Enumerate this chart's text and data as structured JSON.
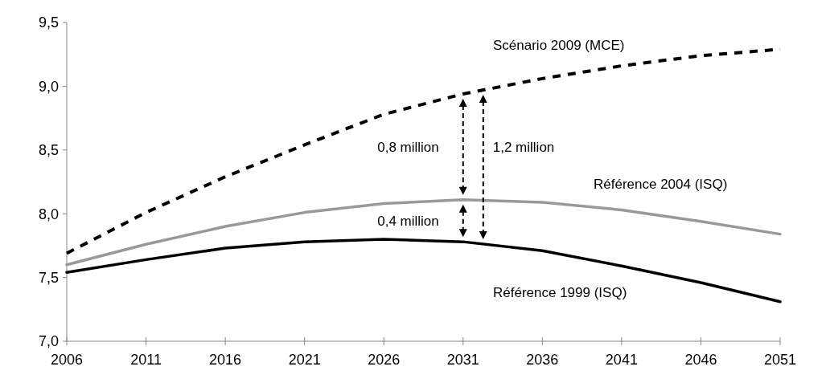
{
  "chart_data": {
    "type": "line",
    "x": [
      2006,
      2011,
      2016,
      2021,
      2026,
      2031,
      2036,
      2041,
      2046,
      2051
    ],
    "xlim": [
      2006,
      2051
    ],
    "xticks": [
      2006,
      2011,
      2016,
      2021,
      2026,
      2031,
      2036,
      2041,
      2046,
      2051
    ],
    "ylim": [
      7.0,
      9.5
    ],
    "yticks": [
      {
        "value": 7.0,
        "label": "7,0"
      },
      {
        "value": 7.5,
        "label": "7,5"
      },
      {
        "value": 8.0,
        "label": "8,0"
      },
      {
        "value": 8.5,
        "label": "8,5"
      },
      {
        "value": 9.0,
        "label": "9,0"
      },
      {
        "value": 9.5,
        "label": "9,5"
      }
    ],
    "grid": false,
    "marker": "none",
    "series": [
      {
        "name": "Scénario 2009 (MCE)",
        "color": "#000000",
        "line_style": "dashed",
        "values": [
          7.69,
          8.01,
          8.29,
          8.54,
          8.78,
          8.94,
          9.06,
          9.16,
          9.24,
          9.29
        ]
      },
      {
        "name": "Référence 2004 (ISQ)",
        "color": "#999999",
        "line_style": "solid",
        "values": [
          7.6,
          7.76,
          7.9,
          8.01,
          8.08,
          8.11,
          8.09,
          8.03,
          7.94,
          7.84
        ]
      },
      {
        "name": "Référence 1999 (ISQ)",
        "color": "#000000",
        "line_style": "solid",
        "values": [
          7.54,
          7.64,
          7.73,
          7.78,
          7.8,
          7.78,
          7.71,
          7.59,
          7.46,
          7.31
        ]
      }
    ],
    "annotations": [
      "0,8 million",
      "0,4 million",
      "1,2 million"
    ]
  }
}
